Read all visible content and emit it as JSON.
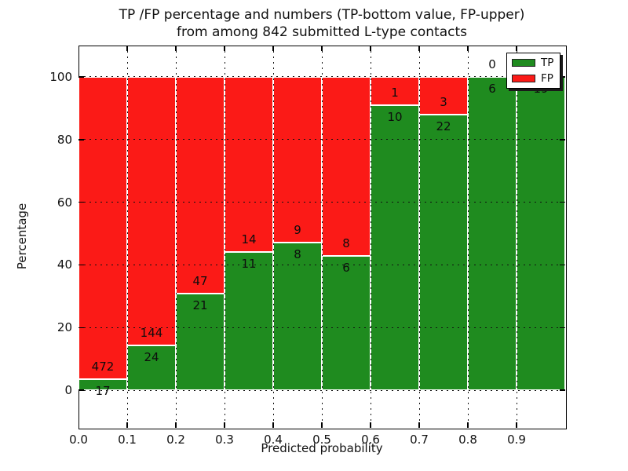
{
  "title": {
    "line1": "TP /FP percentage and numbers (TP-bottom value, FP-upper)",
    "line2": "from among 842 submitted L-type contacts"
  },
  "axes": {
    "xlabel": "Predicted probability",
    "ylabel": "Percentage",
    "x_tick_labels": [
      "0.0",
      "0.1",
      "0.2",
      "0.3",
      "0.4",
      "0.5",
      "0.6",
      "0.7",
      "0.8",
      "0.9"
    ],
    "y_tick_labels": [
      "0",
      "20",
      "40",
      "60",
      "80",
      "100"
    ]
  },
  "legend": {
    "items": [
      {
        "label": "TP",
        "color": "#1f8b1f"
      },
      {
        "label": "FP",
        "color": "#fb1a17"
      }
    ],
    "position": "upper right"
  },
  "chart_data": {
    "type": "bar",
    "subtype": "stacked-percentage",
    "title": "TP /FP percentage and numbers (TP-bottom value, FP-upper) from among 842 submitted L-type contacts",
    "xlabel": "Predicted probability",
    "ylabel": "Percentage",
    "xlim": [
      0.0,
      1.0
    ],
    "ylim": [
      -12,
      110
    ],
    "y_ticks": [
      0,
      20,
      40,
      60,
      80,
      100
    ],
    "x_ticks": [
      0.0,
      0.1,
      0.2,
      0.3,
      0.4,
      0.5,
      0.6,
      0.7,
      0.8,
      0.9
    ],
    "bar_width": 0.1,
    "grid": "dotted-black-over-bars",
    "total_submitted_contacts": 842,
    "categories": [
      "0.0-0.1",
      "0.1-0.2",
      "0.2-0.3",
      "0.3-0.4",
      "0.4-0.5",
      "0.5-0.6",
      "0.6-0.7",
      "0.7-0.8",
      "0.8-0.9",
      "0.9-1.0"
    ],
    "series": [
      {
        "name": "TP",
        "color": "#1f8b1f",
        "values": [
          17,
          24,
          21,
          11,
          8,
          6,
          10,
          22,
          6,
          19
        ]
      },
      {
        "name": "FP",
        "color": "#fb1a17",
        "values": [
          472,
          144,
          47,
          14,
          9,
          8,
          1,
          3,
          0,
          0
        ]
      }
    ],
    "tp_percent_of_bin": [
      3.48,
      14.29,
      30.88,
      44.0,
      47.06,
      42.86,
      90.91,
      88.0,
      100.0,
      100.0
    ],
    "annotation_note": "FP count printed above green/red boundary, TP count below it; FP label of last bin hidden behind legend"
  }
}
